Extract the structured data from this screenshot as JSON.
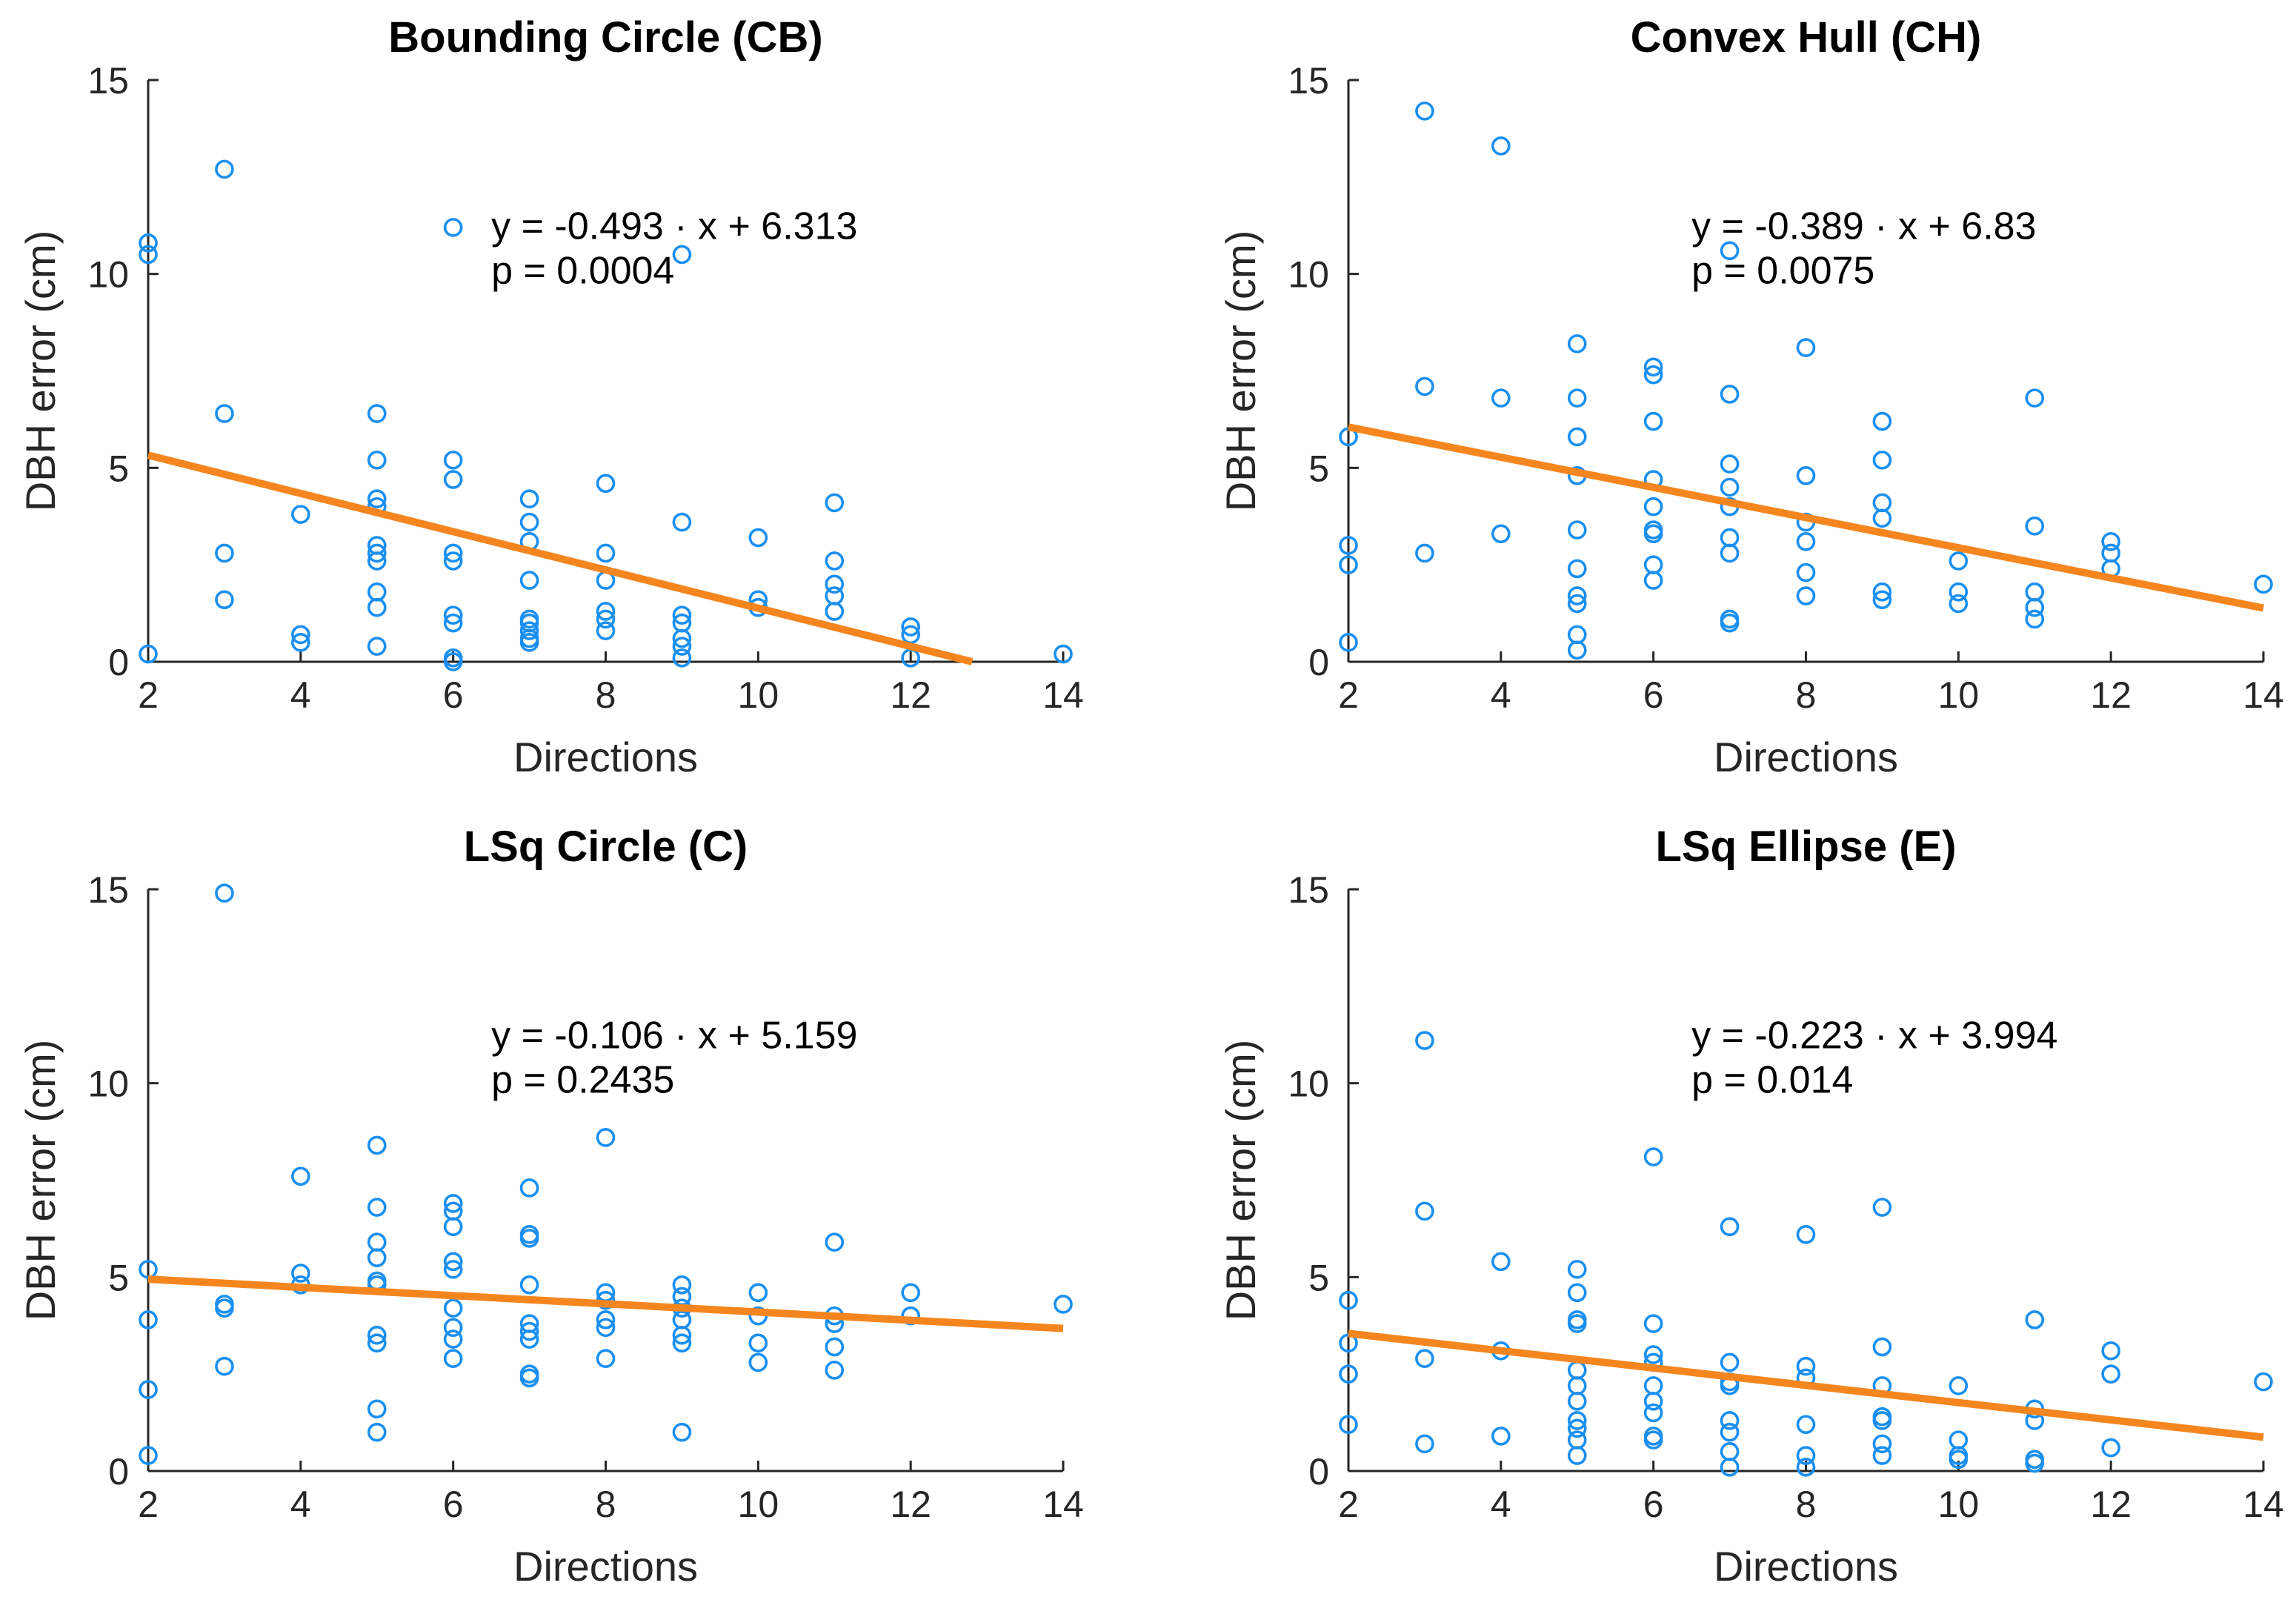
{
  "chart_data": [
    {
      "type": "scatter",
      "title": "Bounding Circle (CB)",
      "xlabel": "Directions",
      "ylabel": "DBH error (cm)",
      "xlim": [
        2,
        14
      ],
      "ylim": [
        0,
        15
      ],
      "xticks": [
        "2",
        "4",
        "6",
        "8",
        "10",
        "12",
        "14"
      ],
      "yticks": [
        "0",
        "5",
        "10",
        "15"
      ],
      "equation": "y = -0.493 · x + 6.313",
      "pvalue": "p = 0.0004",
      "fit": {
        "slope": -0.493,
        "intercept": 6.313
      },
      "points": [
        [
          2,
          10.8
        ],
        [
          2,
          10.5
        ],
        [
          2,
          0.2
        ],
        [
          3,
          12.7
        ],
        [
          3,
          6.4
        ],
        [
          3,
          2.8
        ],
        [
          3,
          1.6
        ],
        [
          4,
          3.8
        ],
        [
          4,
          0.7
        ],
        [
          4,
          0.5
        ],
        [
          5,
          6.4
        ],
        [
          5,
          5.2
        ],
        [
          5,
          4.2
        ],
        [
          5,
          4.0
        ],
        [
          5,
          3.0
        ],
        [
          5,
          2.8
        ],
        [
          5,
          2.6
        ],
        [
          5,
          1.8
        ],
        [
          5,
          1.4
        ],
        [
          5,
          0.4
        ],
        [
          6,
          11.2
        ],
        [
          6,
          5.2
        ],
        [
          6,
          4.7
        ],
        [
          6,
          2.8
        ],
        [
          6,
          2.6
        ],
        [
          6,
          1.2
        ],
        [
          6,
          1.0
        ],
        [
          6,
          0.1
        ],
        [
          6,
          0.0
        ],
        [
          7,
          4.2
        ],
        [
          7,
          3.6
        ],
        [
          7,
          3.1
        ],
        [
          7,
          2.1
        ],
        [
          7,
          1.1
        ],
        [
          7,
          1.0
        ],
        [
          7,
          0.8
        ],
        [
          7,
          0.6
        ],
        [
          7,
          0.5
        ],
        [
          8,
          4.6
        ],
        [
          8,
          2.8
        ],
        [
          8,
          2.1
        ],
        [
          8,
          1.3
        ],
        [
          8,
          1.1
        ],
        [
          8,
          0.8
        ],
        [
          9,
          10.5
        ],
        [
          9,
          3.6
        ],
        [
          9,
          1.2
        ],
        [
          9,
          1.0
        ],
        [
          9,
          0.6
        ],
        [
          9,
          0.4
        ],
        [
          9,
          0.1
        ],
        [
          10,
          3.2
        ],
        [
          10,
          1.6
        ],
        [
          10,
          1.4
        ],
        [
          11,
          4.1
        ],
        [
          11,
          2.6
        ],
        [
          11,
          2.0
        ],
        [
          11,
          1.7
        ],
        [
          11,
          1.3
        ],
        [
          12,
          0.9
        ],
        [
          12,
          0.7
        ],
        [
          12,
          0.1
        ],
        [
          14,
          0.2
        ]
      ]
    },
    {
      "type": "scatter",
      "title": "Convex Hull (CH)",
      "xlabel": "Directions",
      "ylabel": "DBH error (cm)",
      "xlim": [
        2,
        14
      ],
      "ylim": [
        0,
        15
      ],
      "xticks": [
        "2",
        "4",
        "6",
        "8",
        "10",
        "12",
        "14"
      ],
      "yticks": [
        "0",
        "5",
        "10",
        "15"
      ],
      "equation": "y = -0.389 · x + 6.83",
      "pvalue": "p = 0.0075",
      "fit": {
        "slope": -0.389,
        "intercept": 6.83
      },
      "points": [
        [
          2,
          5.8
        ],
        [
          2,
          3.0
        ],
        [
          2,
          2.5
        ],
        [
          2,
          0.5
        ],
        [
          3,
          14.2
        ],
        [
          3,
          7.1
        ],
        [
          3,
          2.8
        ],
        [
          4,
          13.3
        ],
        [
          4,
          6.8
        ],
        [
          4,
          3.3
        ],
        [
          5,
          8.2
        ],
        [
          5,
          6.8
        ],
        [
          5,
          5.8
        ],
        [
          5,
          4.8
        ],
        [
          5,
          3.4
        ],
        [
          5,
          2.4
        ],
        [
          5,
          1.7
        ],
        [
          5,
          1.5
        ],
        [
          5,
          0.7
        ],
        [
          5,
          0.3
        ],
        [
          6,
          7.6
        ],
        [
          6,
          7.4
        ],
        [
          6,
          6.2
        ],
        [
          6,
          4.7
        ],
        [
          6,
          4.0
        ],
        [
          6,
          3.4
        ],
        [
          6,
          3.3
        ],
        [
          6,
          2.5
        ],
        [
          6,
          2.1
        ],
        [
          7,
          10.6
        ],
        [
          7,
          6.9
        ],
        [
          7,
          5.1
        ],
        [
          7,
          4.5
        ],
        [
          7,
          4.0
        ],
        [
          7,
          3.2
        ],
        [
          7,
          2.8
        ],
        [
          7,
          1.1
        ],
        [
          7,
          1.0
        ],
        [
          8,
          8.1
        ],
        [
          8,
          4.8
        ],
        [
          8,
          3.6
        ],
        [
          8,
          3.1
        ],
        [
          8,
          2.3
        ],
        [
          8,
          1.7
        ],
        [
          9,
          6.2
        ],
        [
          9,
          5.2
        ],
        [
          9,
          4.1
        ],
        [
          9,
          3.7
        ],
        [
          9,
          1.8
        ],
        [
          9,
          1.6
        ],
        [
          10,
          2.6
        ],
        [
          10,
          1.8
        ],
        [
          10,
          1.5
        ],
        [
          11,
          6.8
        ],
        [
          11,
          3.5
        ],
        [
          11,
          1.8
        ],
        [
          11,
          1.4
        ],
        [
          11,
          1.1
        ],
        [
          12,
          3.1
        ],
        [
          12,
          2.8
        ],
        [
          12,
          2.4
        ],
        [
          14,
          2.0
        ]
      ]
    },
    {
      "type": "scatter",
      "title": "LSq Circle (C)",
      "xlabel": "Directions",
      "ylabel": "DBH error (cm)",
      "xlim": [
        2,
        14
      ],
      "ylim": [
        0,
        15
      ],
      "xticks": [
        "2",
        "4",
        "6",
        "8",
        "10",
        "12",
        "14"
      ],
      "yticks": [
        "0",
        "5",
        "10",
        "15"
      ],
      "equation": "y = -0.106 · x + 5.159",
      "pvalue": "p = 0.2435",
      "fit": {
        "slope": -0.106,
        "intercept": 5.159
      },
      "points": [
        [
          2,
          5.2
        ],
        [
          2,
          3.9
        ],
        [
          2,
          2.1
        ],
        [
          2,
          0.4
        ],
        [
          3,
          14.9
        ],
        [
          3,
          4.3
        ],
        [
          3,
          4.2
        ],
        [
          3,
          2.7
        ],
        [
          4,
          7.6
        ],
        [
          4,
          5.1
        ],
        [
          4,
          4.8
        ],
        [
          5,
          8.4
        ],
        [
          5,
          6.8
        ],
        [
          5,
          5.9
        ],
        [
          5,
          5.5
        ],
        [
          5,
          4.9
        ],
        [
          5,
          4.8
        ],
        [
          5,
          3.5
        ],
        [
          5,
          3.3
        ],
        [
          5,
          1.6
        ],
        [
          5,
          1.0
        ],
        [
          6,
          6.9
        ],
        [
          6,
          6.7
        ],
        [
          6,
          6.3
        ],
        [
          6,
          5.4
        ],
        [
          6,
          5.2
        ],
        [
          6,
          4.2
        ],
        [
          6,
          3.7
        ],
        [
          6,
          3.4
        ],
        [
          6,
          2.9
        ],
        [
          7,
          7.3
        ],
        [
          7,
          6.1
        ],
        [
          7,
          6.0
        ],
        [
          7,
          4.8
        ],
        [
          7,
          3.8
        ],
        [
          7,
          3.6
        ],
        [
          7,
          3.4
        ],
        [
          7,
          2.5
        ],
        [
          7,
          2.4
        ],
        [
          8,
          8.6
        ],
        [
          8,
          4.6
        ],
        [
          8,
          4.4
        ],
        [
          8,
          3.9
        ],
        [
          8,
          3.7
        ],
        [
          8,
          2.9
        ],
        [
          9,
          4.8
        ],
        [
          9,
          4.5
        ],
        [
          9,
          4.2
        ],
        [
          9,
          3.9
        ],
        [
          9,
          3.5
        ],
        [
          9,
          3.3
        ],
        [
          9,
          1.0
        ],
        [
          10,
          4.6
        ],
        [
          10,
          4.0
        ],
        [
          10,
          3.3
        ],
        [
          10,
          2.8
        ],
        [
          11,
          5.9
        ],
        [
          11,
          4.0
        ],
        [
          11,
          3.8
        ],
        [
          11,
          3.2
        ],
        [
          11,
          2.6
        ],
        [
          12,
          4.6
        ],
        [
          12,
          4.0
        ],
        [
          14,
          4.3
        ]
      ]
    },
    {
      "type": "scatter",
      "title": "LSq Ellipse (E)",
      "xlabel": "Directions",
      "ylabel": "DBH error (cm)",
      "xlim": [
        2,
        14
      ],
      "ylim": [
        0,
        15
      ],
      "xticks": [
        "2",
        "4",
        "6",
        "8",
        "10",
        "12",
        "14"
      ],
      "yticks": [
        "0",
        "5",
        "10",
        "15"
      ],
      "equation": "y = -0.223 · x + 3.994",
      "pvalue": "p = 0.014",
      "fit": {
        "slope": -0.223,
        "intercept": 3.994
      },
      "points": [
        [
          2,
          4.4
        ],
        [
          2,
          3.3
        ],
        [
          2,
          2.5
        ],
        [
          2,
          1.2
        ],
        [
          3,
          11.1
        ],
        [
          3,
          6.7
        ],
        [
          3,
          2.9
        ],
        [
          3,
          0.7
        ],
        [
          4,
          5.4
        ],
        [
          4,
          3.1
        ],
        [
          4,
          0.9
        ],
        [
          5,
          5.2
        ],
        [
          5,
          4.6
        ],
        [
          5,
          3.9
        ],
        [
          5,
          3.8
        ],
        [
          5,
          2.6
        ],
        [
          5,
          2.2
        ],
        [
          5,
          1.8
        ],
        [
          5,
          1.3
        ],
        [
          5,
          1.1
        ],
        [
          5,
          0.8
        ],
        [
          5,
          0.4
        ],
        [
          6,
          8.1
        ],
        [
          6,
          3.8
        ],
        [
          6,
          3.0
        ],
        [
          6,
          2.8
        ],
        [
          6,
          2.2
        ],
        [
          6,
          1.8
        ],
        [
          6,
          1.5
        ],
        [
          6,
          0.9
        ],
        [
          6,
          0.8
        ],
        [
          7,
          6.3
        ],
        [
          7,
          2.8
        ],
        [
          7,
          2.3
        ],
        [
          7,
          2.2
        ],
        [
          7,
          1.3
        ],
        [
          7,
          1.0
        ],
        [
          7,
          0.5
        ],
        [
          7,
          0.1
        ],
        [
          8,
          6.1
        ],
        [
          8,
          2.7
        ],
        [
          8,
          2.4
        ],
        [
          8,
          1.2
        ],
        [
          8,
          0.4
        ],
        [
          8,
          0.1
        ],
        [
          9,
          6.8
        ],
        [
          9,
          3.2
        ],
        [
          9,
          2.2
        ],
        [
          9,
          1.4
        ],
        [
          9,
          1.3
        ],
        [
          9,
          0.7
        ],
        [
          9,
          0.4
        ],
        [
          10,
          2.2
        ],
        [
          10,
          0.8
        ],
        [
          10,
          0.4
        ],
        [
          10,
          0.3
        ],
        [
          11,
          3.9
        ],
        [
          11,
          1.6
        ],
        [
          11,
          1.3
        ],
        [
          11,
          0.3
        ],
        [
          11,
          0.2
        ],
        [
          12,
          3.1
        ],
        [
          12,
          2.5
        ],
        [
          12,
          0.6
        ],
        [
          14,
          2.3
        ]
      ]
    }
  ]
}
